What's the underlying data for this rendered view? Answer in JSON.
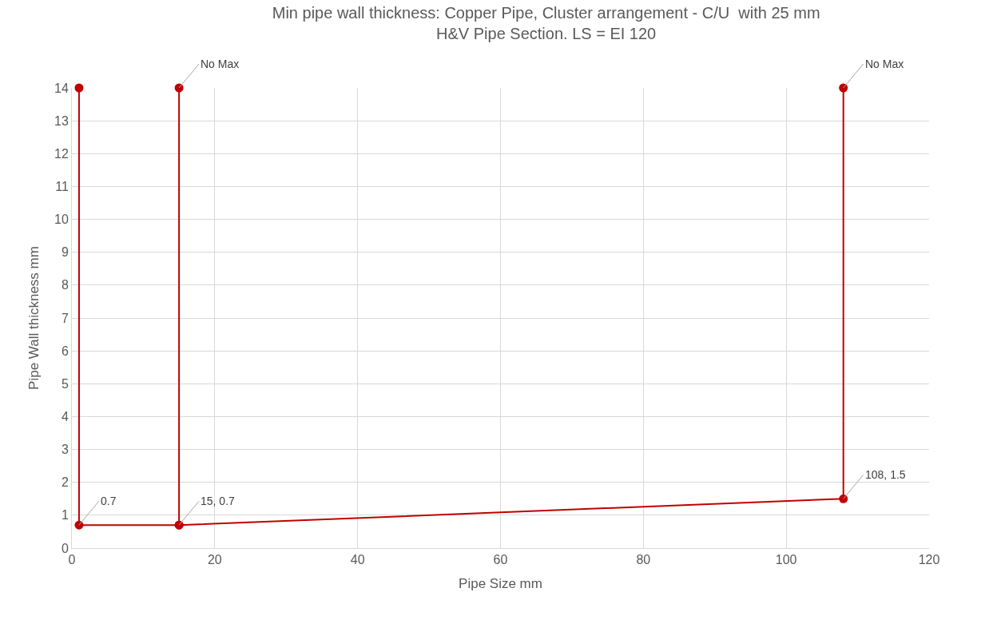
{
  "chart_data": {
    "type": "line",
    "title": "Min pipe wall thickness: Copper Pipe, Cluster arrangement - C/U  with 25 mm\nH&V Pipe Section. LS = EI 120",
    "xlabel": "Pipe Size mm",
    "ylabel": "Pipe Wall thickness mm",
    "series": [
      {
        "x": [
          1,
          1,
          15,
          15
        ],
        "values": [
          14,
          0.7,
          0.7,
          14
        ],
        "color": "#c00000"
      },
      {
        "x": [
          15,
          108,
          108
        ],
        "values": [
          0.7,
          1.5,
          14
        ],
        "color": "#c00000"
      }
    ],
    "annotations": [
      {
        "text": "0.7",
        "x": 1,
        "y": 0.7
      },
      {
        "text": "15, 0.7",
        "x": 15,
        "y": 0.7
      },
      {
        "text": "108, 1.5",
        "x": 108,
        "y": 1.5
      },
      {
        "text": "No Max",
        "x": 15,
        "y": 14
      },
      {
        "text": "No Max",
        "x": 108,
        "y": 14
      }
    ],
    "xlim": [
      0,
      120
    ],
    "xticks": [
      0,
      20,
      40,
      60,
      80,
      100,
      120
    ],
    "ylim": [
      0,
      14
    ],
    "yticks": [
      0,
      1,
      2,
      3,
      4,
      5,
      6,
      7,
      8,
      9,
      10,
      11,
      12,
      13,
      14
    ],
    "grid": true,
    "marker": "circle",
    "line_style": "solid"
  }
}
